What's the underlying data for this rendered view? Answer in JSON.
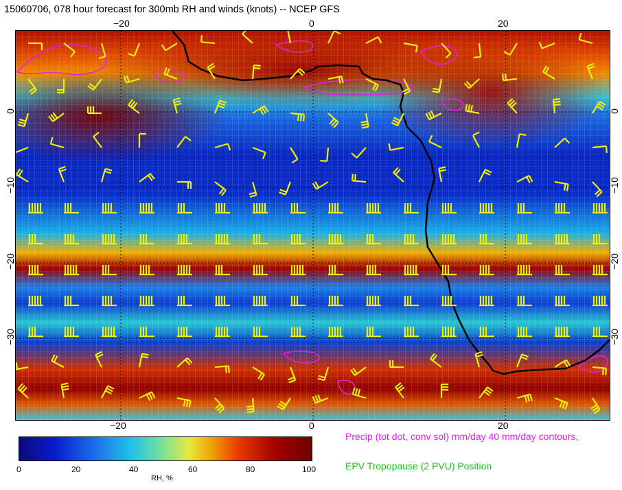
{
  "title": "15060706, 078 hour forecast for 300mb RH and winds (knots) -- NCEP GFS",
  "axes": {
    "top_lon_labels": [
      "−20",
      "0",
      "20"
    ],
    "bottom_lon_labels": [
      "−20",
      "0",
      "20"
    ],
    "left_lat_labels": [
      "0",
      "−10",
      "−20",
      "−30"
    ],
    "right_lat_labels": [
      "0",
      "−10",
      "−20",
      "−30"
    ]
  },
  "colorbar": {
    "label": "RH, %",
    "ticks": [
      "0",
      "20",
      "40",
      "60",
      "80",
      "100"
    ]
  },
  "legend": {
    "precip": "Precip (tot dot, conv sol) mm/day 40 mm/day contours,",
    "epv": "EPV Tropopause (2 PVU) Position"
  },
  "colors": {
    "barb": "#f0f000",
    "coast": "#000000",
    "precip_contour": "#e020e0",
    "epv": "#20c020"
  },
  "icons": {
    "wind-barb": "yellow wind barb glyphs",
    "coastline": "black coastline"
  }
}
